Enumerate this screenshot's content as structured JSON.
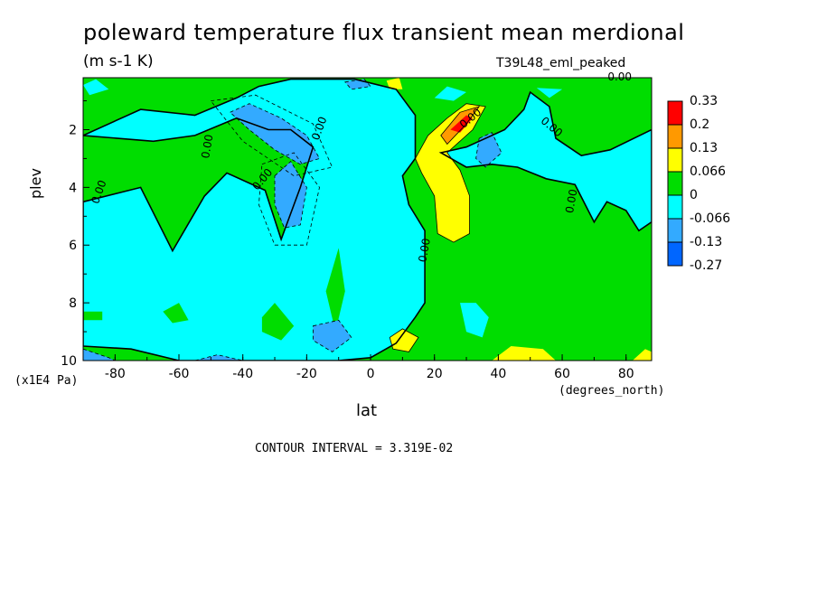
{
  "header": {
    "title": "poleward temperature flux transient mean merdional",
    "units": "(m s-1 K)",
    "dataset": "T39L48_eml_peaked"
  },
  "footer": {
    "contour_interval": "CONTOUR INTERVAL = 3.319E-02"
  },
  "chart_data": {
    "type": "heatmap",
    "title": "poleward temperature flux transient mean merdional",
    "subtitle": "(m s-1 K)",
    "dataset_label": "T39L48_eml_peaked",
    "xlabel": "lat",
    "ylabel": "plev",
    "x_unit": "(degrees_north)",
    "y_unit": "(x1E4 Pa)",
    "xlim": [
      -90,
      88
    ],
    "ylim": [
      10,
      0.2
    ],
    "y_inverted": true,
    "x_ticks": [
      -80,
      -60,
      -40,
      -20,
      0,
      20,
      40,
      60,
      80
    ],
    "y_ticks": [
      2,
      4,
      6,
      8,
      10
    ],
    "contour_interval": 0.03319,
    "colorbar": {
      "labels": [
        "0.33",
        "0.2",
        "0.13",
        "0.066",
        "0",
        "-0.066",
        "-0.13",
        "-0.27"
      ],
      "colors": [
        "#ff0000",
        "#ff9900",
        "#ffff00",
        "#00dd00",
        "#00ffff",
        "#33aaff",
        "#0066ff"
      ]
    },
    "contour_labels": [
      "0.00",
      "0.00",
      "0.00",
      "0.00",
      "0.00",
      "0.00",
      "0.00",
      "0.00",
      "0.00"
    ]
  }
}
